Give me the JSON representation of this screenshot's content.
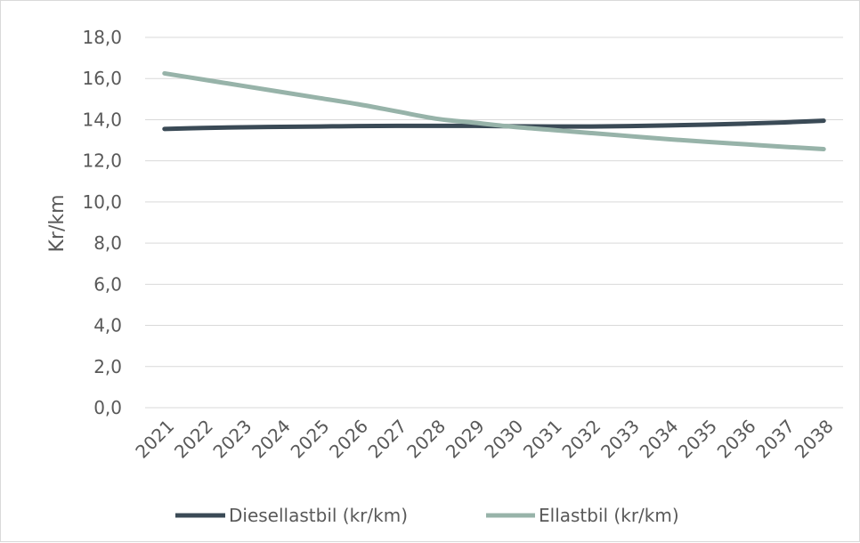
{
  "chart_data": {
    "type": "line",
    "title": "",
    "xlabel": "",
    "ylabel": "Kr/km",
    "ylim": [
      0,
      18
    ],
    "yticks": [
      "0,0",
      "2,0",
      "4,0",
      "6,0",
      "8,0",
      "10,0",
      "12,0",
      "14,0",
      "16,0",
      "18,0"
    ],
    "categories": [
      "2021",
      "2022",
      "2023",
      "2024",
      "2025",
      "2026",
      "2027",
      "2028",
      "2029",
      "2030",
      "2031",
      "2032",
      "2033",
      "2034",
      "2035",
      "2036",
      "2037",
      "2038"
    ],
    "grid": true,
    "legend_position": "bottom",
    "series": [
      {
        "name": "Diesellastbil (kr/km)",
        "color": "#3a4a56",
        "values": [
          13.55,
          13.6,
          13.63,
          13.65,
          13.67,
          13.69,
          13.7,
          13.7,
          13.7,
          13.68,
          13.67,
          13.67,
          13.69,
          13.72,
          13.76,
          13.81,
          13.87,
          13.95
        ]
      },
      {
        "name": "Ellastbil (kr/km)",
        "color": "#97b3a9",
        "values": [
          16.25,
          15.95,
          15.65,
          15.35,
          15.05,
          14.75,
          14.4,
          14.05,
          13.85,
          13.65,
          13.5,
          13.35,
          13.2,
          13.05,
          12.92,
          12.8,
          12.68,
          12.57
        ]
      }
    ]
  }
}
